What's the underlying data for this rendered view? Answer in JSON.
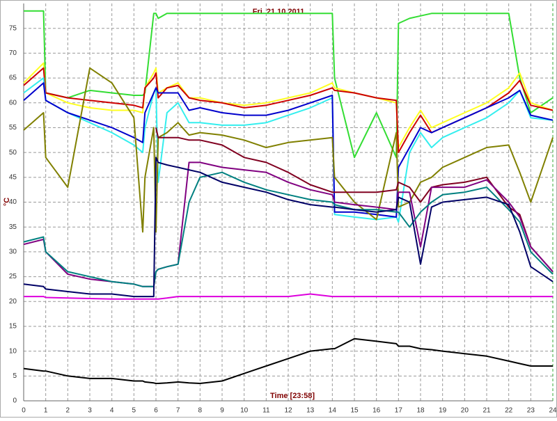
{
  "chart_data": {
    "type": "line",
    "title": "Fri. 21.10.2011",
    "xlabel": "Time [23:58]",
    "ylabel": "°C",
    "x": [
      0,
      0.9,
      1,
      2,
      3,
      4,
      5,
      5.4,
      5.5,
      5.9,
      6,
      6.1,
      6.5,
      7,
      7.5,
      8,
      9,
      10,
      11,
      12,
      13,
      14,
      14.1,
      15,
      16,
      16.9,
      17,
      17.5,
      18,
      18.5,
      19,
      20,
      21,
      22,
      22.5,
      23,
      24
    ],
    "xlim": [
      0,
      24
    ],
    "xticks": [
      0,
      1,
      2,
      3,
      4,
      5,
      6,
      7,
      8,
      9,
      10,
      11,
      12,
      13,
      14,
      15,
      16,
      17,
      18,
      19,
      20,
      21,
      22,
      23,
      24
    ],
    "ylim": [
      0,
      80
    ],
    "yticks": [
      0,
      5,
      10,
      15,
      20,
      25,
      30,
      35,
      40,
      45,
      50,
      55,
      60,
      65,
      70,
      75
    ],
    "grid": true,
    "series": [
      {
        "color": "#33dd33",
        "values": [
          78.5,
          78.5,
          62,
          61,
          62.5,
          62,
          61.5,
          61.5,
          62,
          78,
          78,
          77,
          78,
          78,
          78,
          78,
          78,
          78,
          78,
          78,
          78,
          78,
          65,
          49,
          58,
          49,
          76,
          77,
          77.5,
          78,
          78,
          78,
          78,
          78,
          65,
          58,
          61
        ]
      },
      {
        "color": "#ffff22",
        "values": [
          64,
          68,
          62,
          60,
          59,
          58.5,
          58.5,
          58,
          63,
          66,
          67,
          62,
          63,
          64,
          61,
          61,
          60,
          59.5,
          60,
          61,
          62,
          64,
          63,
          62,
          61,
          60,
          51,
          55,
          58.5,
          55,
          56,
          58,
          60,
          63,
          66,
          60,
          58.5
        ]
      },
      {
        "color": "#cc0000",
        "values": [
          63.5,
          67,
          62,
          61,
          60.5,
          60,
          59.5,
          59,
          63,
          65,
          66,
          61,
          63,
          63.5,
          61,
          60.5,
          60,
          59,
          59.5,
          60.5,
          61.5,
          63,
          62.5,
          62,
          61,
          60.5,
          50,
          54,
          57.5,
          54,
          55,
          57,
          59,
          62,
          64.5,
          59.5,
          58.5
        ]
      },
      {
        "color": "#33eeee",
        "values": [
          62,
          65,
          60.5,
          58,
          56,
          54,
          51.5,
          50,
          55,
          62,
          63,
          44,
          58,
          60,
          56,
          56,
          55.5,
          55.5,
          56,
          57.5,
          59,
          61,
          37.5,
          37,
          36.5,
          37,
          36,
          50,
          54,
          51,
          53,
          55,
          57,
          60,
          62.5,
          57,
          56.5
        ]
      },
      {
        "color": "#0000cc",
        "values": [
          60.5,
          64,
          60.5,
          58,
          56.5,
          55,
          53,
          52,
          58,
          62,
          63,
          62,
          62,
          62,
          58.5,
          59,
          58,
          57.5,
          57.5,
          58.5,
          60,
          61.5,
          38,
          38,
          37.5,
          37,
          47,
          51,
          55,
          54,
          55,
          57,
          59,
          61,
          62.5,
          57.5,
          56.5
        ]
      },
      {
        "color": "#808000",
        "values": [
          54.5,
          58,
          49,
          43,
          67,
          64,
          57,
          34,
          45,
          55,
          34,
          53,
          54,
          56,
          53.5,
          54,
          53.5,
          52.5,
          51,
          52,
          52.5,
          53,
          45,
          40,
          36.5,
          54,
          39,
          40,
          44,
          45,
          47,
          49,
          51,
          51.5,
          46,
          40,
          53
        ]
      },
      {
        "color": "#800020",
        "values": [
          null,
          null,
          null,
          null,
          null,
          null,
          null,
          null,
          null,
          null,
          55,
          53,
          53,
          53,
          52.5,
          52.5,
          51.5,
          49,
          48,
          46,
          43.5,
          42,
          42,
          42,
          42,
          42.5,
          44,
          43,
          40,
          43,
          43.5,
          44,
          45,
          39,
          37.5,
          31,
          26
        ]
      },
      {
        "color": "#800080",
        "values": [
          31.5,
          32.5,
          30,
          25.5,
          24.5,
          24,
          23.5,
          23,
          23,
          23,
          26,
          26.5,
          27,
          27.5,
          48,
          48,
          47,
          46.5,
          46,
          44,
          42.5,
          41.5,
          40,
          39.5,
          39,
          38.5,
          42,
          42,
          31,
          43,
          43,
          43,
          44.5,
          40,
          37,
          31,
          26
        ]
      },
      {
        "color": "#008080",
        "values": [
          32,
          33,
          30,
          26,
          25,
          24,
          23.5,
          23,
          23,
          23,
          26,
          26.5,
          27,
          27.5,
          40,
          45,
          46,
          44,
          42.5,
          41.5,
          40.5,
          40,
          39.5,
          38.5,
          38.5,
          38,
          38,
          35,
          38,
          40,
          41.5,
          42,
          43,
          38.5,
          36,
          30,
          25.5
        ]
      },
      {
        "color": "#000066",
        "values": [
          23.5,
          23,
          22.5,
          22,
          21.5,
          21.5,
          21,
          21,
          21,
          21,
          49,
          48,
          47.5,
          47,
          46.5,
          46,
          44,
          43,
          42,
          40.5,
          39.5,
          39,
          39,
          38.5,
          38,
          38.5,
          41,
          40,
          27.5,
          39,
          40,
          40.5,
          41,
          39.5,
          34,
          27,
          24
        ]
      },
      {
        "color": "#dd00dd",
        "values": [
          21,
          21,
          20.8,
          20.7,
          20.6,
          20.5,
          20.5,
          20.5,
          20.5,
          20.5,
          20.5,
          20.5,
          20.7,
          21,
          21,
          21,
          21,
          21,
          21,
          21,
          21.5,
          21,
          21,
          21,
          21,
          21,
          21,
          21,
          21,
          21,
          21,
          21,
          21,
          21,
          21,
          21,
          21
        ]
      },
      {
        "color": "#000000",
        "values": [
          6.5,
          6,
          6,
          5,
          4.5,
          4.5,
          4,
          4,
          3.8,
          3.6,
          3.5,
          3.5,
          3.6,
          3.8,
          3.6,
          3.5,
          4,
          5.5,
          7,
          8.5,
          10,
          10.5,
          10.5,
          12.5,
          12,
          11.5,
          11,
          11,
          10.5,
          10.3,
          10,
          9.5,
          9,
          8,
          7.5,
          7,
          7
        ]
      }
    ]
  }
}
